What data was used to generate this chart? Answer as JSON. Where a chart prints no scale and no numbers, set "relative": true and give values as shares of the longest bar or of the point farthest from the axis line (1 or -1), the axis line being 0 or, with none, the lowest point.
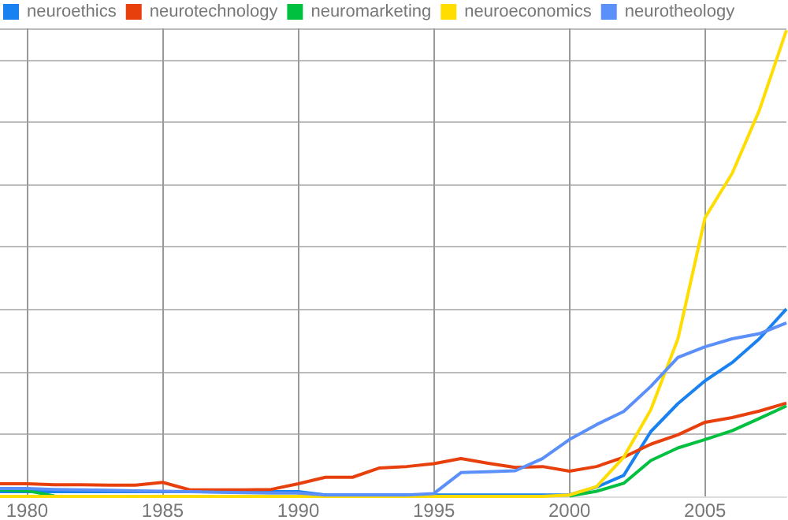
{
  "chart_data": {
    "type": "line",
    "relative": true,
    "x": [
      1979,
      1980,
      1981,
      1982,
      1983,
      1984,
      1985,
      1986,
      1987,
      1988,
      1989,
      1990,
      1991,
      1992,
      1993,
      1994,
      1995,
      1996,
      1997,
      1998,
      1999,
      2000,
      2001,
      2002,
      2003,
      2004,
      2005,
      2006,
      2007,
      2008
    ],
    "xlim": [
      1979,
      2008
    ],
    "xticks": [
      1980,
      1985,
      1990,
      1995,
      2000,
      2005
    ],
    "series": [
      {
        "name": "neuroethics",
        "color": "#1a82f0",
        "values": [
          0.01,
          0.01,
          0.01,
          0.01,
          0.01,
          0.01,
          0.01,
          0.01,
          0.01,
          0.01,
          0.01,
          0.01,
          0.003,
          0.003,
          0.003,
          0.003,
          0.003,
          0.003,
          0.003,
          0.003,
          0.003,
          0.003,
          0.02,
          0.045,
          0.139,
          0.199,
          0.248,
          0.287,
          0.338,
          0.402
        ]
      },
      {
        "name": "neurotechnology",
        "color": "#e8400c",
        "values": [
          0.027,
          0.027,
          0.025,
          0.025,
          0.024,
          0.024,
          0.03,
          0.014,
          0.014,
          0.014,
          0.015,
          0.027,
          0.041,
          0.041,
          0.061,
          0.064,
          0.07,
          0.081,
          0.071,
          0.062,
          0.064,
          0.054,
          0.064,
          0.084,
          0.112,
          0.132,
          0.159,
          0.169,
          0.183,
          0.2
        ]
      },
      {
        "name": "neuromarketing",
        "color": "#00c040",
        "values": [
          0.014,
          0.012,
          0.001,
          null,
          null,
          null,
          null,
          null,
          null,
          null,
          null,
          null,
          null,
          null,
          null,
          null,
          null,
          null,
          null,
          null,
          null,
          0.001,
          0.011,
          0.028,
          0.077,
          0.104,
          0.122,
          0.141,
          0.167,
          0.194
        ]
      },
      {
        "name": "neuroeconomics",
        "color": "#ffdd00",
        "values": [
          0,
          0,
          0,
          0,
          0,
          0,
          0,
          0,
          0,
          0,
          0,
          0,
          0,
          0,
          0,
          0,
          0,
          0,
          0,
          0,
          0,
          0.003,
          0.021,
          0.084,
          0.186,
          0.338,
          0.598,
          0.693,
          0.828,
          1
        ]
      },
      {
        "name": "neurotheology",
        "color": "#5b8ff9",
        "values": [
          0.017,
          0.017,
          0.015,
          0.014,
          0.013,
          0.012,
          0.011,
          0.01,
          0.009,
          0.008,
          0.007,
          0.007,
          0.003,
          0.003,
          0.003,
          0.003,
          0.006,
          0.051,
          0.053,
          0.055,
          0.081,
          0.122,
          0.154,
          0.182,
          0.236,
          0.298,
          0.321,
          0.338,
          0.349,
          0.372
        ]
      }
    ],
    "grid": true,
    "legend": "top left",
    "marker": "none",
    "line_style": "solid"
  }
}
